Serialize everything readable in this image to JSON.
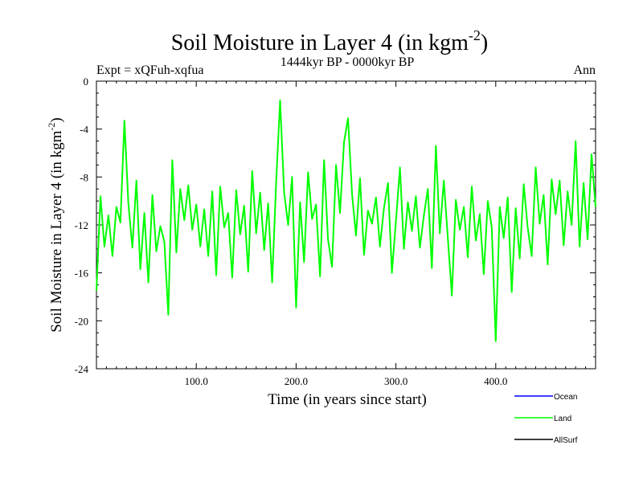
{
  "chart_data": {
    "type": "line",
    "title": "Soil Moisture in Layer 4 (in kgm",
    "title_sup": "-2",
    "title_close": ")",
    "subtitle": "1444kyr BP - 0000kyr BP",
    "experiment": "Expt = xQFuh-xqfua",
    "season": "Ann",
    "xlabel": "Time (in years since start)",
    "ylabel": "Soil Moisture in Layer 4 (in kgm",
    "ylabel_sup": "-2",
    "ylabel_close": ")",
    "xlim": [
      0,
      500
    ],
    "ylim": [
      -24,
      0
    ],
    "xticks": [
      100,
      200,
      300,
      400
    ],
    "xtick_labels": [
      "100.0",
      "200.0",
      "300.0",
      "400.0"
    ],
    "yticks": [
      0,
      -4,
      -8,
      -12,
      -16,
      -20,
      -24
    ],
    "ytick_labels": [
      "0",
      "-4",
      "-8",
      "-12",
      "-16",
      "-20",
      "-24"
    ],
    "legend": [
      {
        "name": "Ocean",
        "color": "#0000ff"
      },
      {
        "name": "Land",
        "color": "#00ff00"
      },
      {
        "name": "AllSurf",
        "color": "#000000"
      }
    ],
    "series": [
      {
        "name": "Land",
        "color": "#00ff00",
        "x": [
          0,
          4,
          8,
          12,
          16,
          20,
          24,
          28,
          32,
          36,
          40,
          44,
          48,
          52,
          56,
          60,
          64,
          68,
          72,
          76,
          80,
          84,
          88,
          92,
          96,
          100,
          104,
          108,
          112,
          116,
          120,
          124,
          128,
          132,
          136,
          140,
          144,
          148,
          152,
          156,
          160,
          164,
          168,
          172,
          176,
          180,
          184,
          188,
          192,
          196,
          200,
          204,
          208,
          212,
          216,
          220,
          224,
          228,
          232,
          236,
          240,
          244,
          248,
          252,
          256,
          260,
          264,
          268,
          272,
          276,
          280,
          284,
          288,
          292,
          296,
          300,
          304,
          308,
          312,
          316,
          320,
          324,
          328,
          332,
          336,
          340,
          344,
          348,
          352,
          356,
          360,
          364,
          368,
          372,
          376,
          380,
          384,
          388,
          392,
          396,
          400,
          404,
          408,
          412,
          416,
          420,
          424,
          428,
          432,
          436,
          440,
          444,
          448,
          452,
          456,
          460,
          464,
          468,
          472,
          476,
          480,
          484,
          488,
          492,
          496,
          500
        ],
        "values": [
          -17.5,
          -9.6,
          -13.8,
          -11.2,
          -14.6,
          -10.5,
          -11.8,
          -3.3,
          -10.2,
          -13.9,
          -8.3,
          -15.7,
          -11.0,
          -16.8,
          -9.5,
          -14.2,
          -12.1,
          -13.4,
          -19.5,
          -6.6,
          -14.3,
          -9.0,
          -11.6,
          -8.7,
          -12.4,
          -10.3,
          -13.8,
          -10.7,
          -14.6,
          -9.2,
          -16.2,
          -8.8,
          -12.2,
          -11.0,
          -16.4,
          -9.1,
          -12.8,
          -10.4,
          -15.9,
          -7.5,
          -12.7,
          -9.3,
          -14.1,
          -10.2,
          -16.8,
          -8.4,
          -1.6,
          -9.3,
          -12.0,
          -8.0,
          -18.9,
          -10.1,
          -15.1,
          -7.6,
          -11.5,
          -10.3,
          -16.3,
          -6.6,
          -13.2,
          -15.5,
          -7.0,
          -11.0,
          -5.1,
          -3.1,
          -9.4,
          -12.9,
          -8.1,
          -14.5,
          -10.8,
          -11.9,
          -9.7,
          -13.8,
          -10.6,
          -8.5,
          -16.0,
          -11.7,
          -7.2,
          -14.0,
          -10.1,
          -12.5,
          -9.6,
          -13.9,
          -11.2,
          -9.0,
          -15.6,
          -5.4,
          -12.7,
          -8.3,
          -13.1,
          -17.9,
          -9.9,
          -12.4,
          -10.5,
          -14.7,
          -8.8,
          -13.3,
          -11.1,
          -16.1,
          -10.0,
          -12.2,
          -21.7,
          -10.5,
          -13.1,
          -9.7,
          -17.6,
          -10.6,
          -14.8,
          -8.6,
          -12.2,
          -14.6,
          -7.2,
          -11.9,
          -9.5,
          -15.3,
          -8.2,
          -11.1,
          -8.3,
          -13.7,
          -9.2,
          -12.0,
          -5.0,
          -13.8,
          -8.5,
          -13.2,
          -6.1,
          -10.5
        ]
      }
    ]
  }
}
